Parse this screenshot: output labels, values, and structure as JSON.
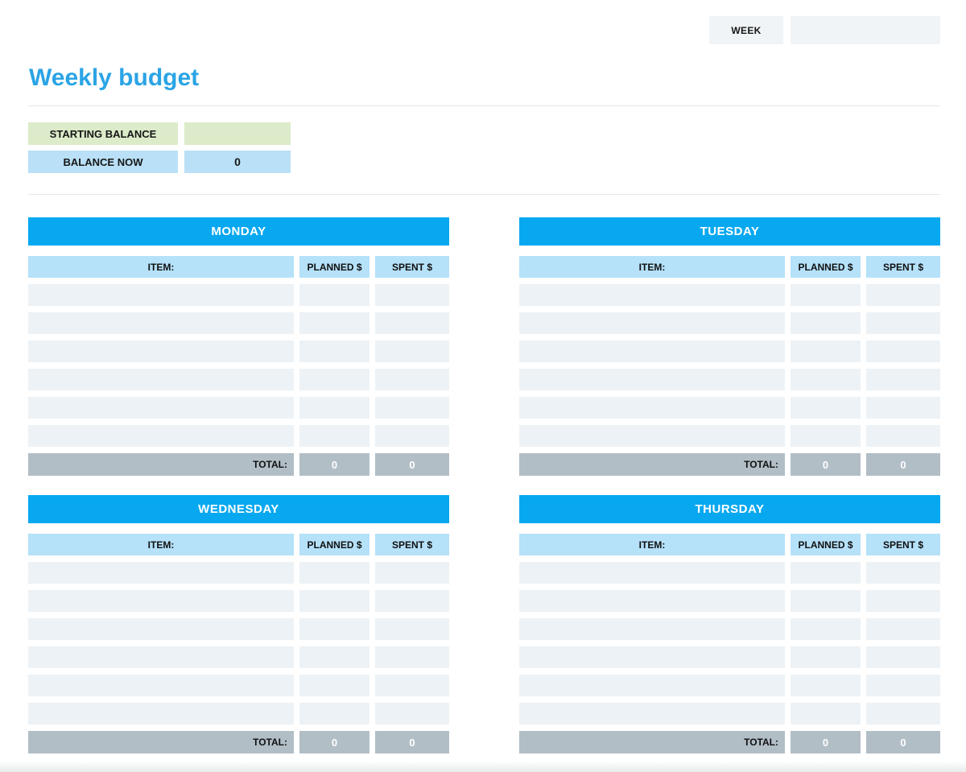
{
  "header": {
    "week_label": "WEEK",
    "week_value": "",
    "title": "Weekly budget"
  },
  "balance": {
    "starting_label": "STARTING BALANCE",
    "starting_value": "",
    "now_label": "BALANCE NOW",
    "now_value": "0"
  },
  "tables": {
    "item_header": "ITEM:",
    "planned_header": "PLANNED $",
    "spent_header": "SPENT $",
    "total_label": "TOTAL:",
    "empty_rows_per_table": 6
  },
  "days": [
    {
      "name": "MONDAY",
      "total_planned": "0",
      "total_spent": "0"
    },
    {
      "name": "TUESDAY",
      "total_planned": "0",
      "total_spent": "0"
    },
    {
      "name": "WEDNESDAY",
      "total_planned": "0",
      "total_spent": "0"
    },
    {
      "name": "THURSDAY",
      "total_planned": "0",
      "total_spent": "0"
    }
  ],
  "colors": {
    "title_blue": "#2ba4e5",
    "day_header_blue": "#08a8f0",
    "subheader_light_blue": "#b5e1f9",
    "balance_light_blue": "#b9e0f6",
    "starting_balance_green": "#dcebc9",
    "total_gray": "#b2bec6",
    "empty_row_gray": "#edf2f6",
    "week_box_gray": "#f0f4f6"
  }
}
